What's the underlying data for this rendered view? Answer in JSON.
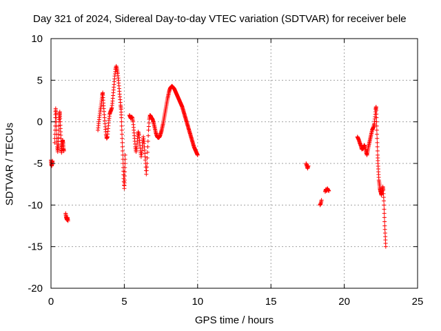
{
  "chart_data": {
    "type": "scatter",
    "title": "Day 321 of 2024, Sidereal Day-to-day VTEC variation (SDTVAR) for receiver bele",
    "xlabel": "GPS time / hours",
    "ylabel": "SDTVAR / TECUs",
    "xlim": [
      0,
      25
    ],
    "ylim": [
      -20,
      10
    ],
    "xticks": [
      0,
      5,
      10,
      15,
      20,
      25
    ],
    "yticks": [
      -20,
      -15,
      -10,
      -5,
      0,
      5,
      10
    ],
    "grid": true,
    "marker": "+",
    "color": "#ff0000",
    "segments": [
      [
        [
          0.0,
          -4.6
        ],
        [
          0.02,
          -5.0
        ],
        [
          0.05,
          -5.3
        ],
        [
          0.08,
          -5.0
        ],
        [
          0.1,
          -4.7
        ]
      ],
      [
        [
          0.25,
          -2.5
        ],
        [
          0.28,
          -1.0
        ],
        [
          0.3,
          0.5
        ],
        [
          0.32,
          1.6
        ],
        [
          0.35,
          1.0
        ],
        [
          0.38,
          -0.5
        ],
        [
          0.4,
          -2.0
        ],
        [
          0.43,
          -3.0
        ],
        [
          0.46,
          -3.6
        ],
        [
          0.5,
          -2.8
        ],
        [
          0.52,
          -1.5
        ],
        [
          0.55,
          0.0
        ],
        [
          0.58,
          0.8
        ],
        [
          0.6,
          1.2
        ],
        [
          0.62,
          0.4
        ],
        [
          0.65,
          -0.8
        ],
        [
          0.68,
          -2.0
        ],
        [
          0.7,
          -3.0
        ],
        [
          0.72,
          -3.7
        ],
        [
          0.75,
          -3.2
        ],
        [
          0.78,
          -2.4
        ],
        [
          0.8,
          -2.2
        ],
        [
          0.83,
          -2.6
        ],
        [
          0.85,
          -3.2
        ],
        [
          0.88,
          -3.5
        ]
      ],
      [
        [
          1.0,
          -11.0
        ],
        [
          1.03,
          -11.4
        ],
        [
          1.06,
          -11.6
        ],
        [
          1.1,
          -11.8
        ],
        [
          1.13,
          -11.5
        ],
        [
          1.16,
          -11.9
        ]
      ],
      [
        [
          3.2,
          -1.0
        ],
        [
          3.25,
          -0.2
        ],
        [
          3.3,
          0.5
        ],
        [
          3.35,
          1.2
        ],
        [
          3.4,
          1.8
        ],
        [
          3.45,
          2.5
        ],
        [
          3.5,
          3.2
        ],
        [
          3.53,
          3.5
        ],
        [
          3.56,
          2.6
        ],
        [
          3.6,
          1.6
        ],
        [
          3.65,
          0.5
        ],
        [
          3.7,
          -0.6
        ],
        [
          3.75,
          -1.5
        ],
        [
          3.8,
          -2.0
        ],
        [
          3.85,
          -1.8
        ],
        [
          3.9,
          -0.8
        ],
        [
          3.95,
          0.2
        ],
        [
          4.0,
          0.9
        ],
        [
          4.05,
          1.2
        ],
        [
          4.1,
          1.4
        ],
        [
          4.15,
          1.7
        ],
        [
          4.2,
          2.5
        ],
        [
          4.25,
          3.5
        ],
        [
          4.3,
          4.5
        ],
        [
          4.35,
          5.5
        ],
        [
          4.4,
          6.3
        ],
        [
          4.45,
          6.7
        ],
        [
          4.5,
          6.3
        ],
        [
          4.55,
          5.8
        ],
        [
          4.6,
          5.0
        ],
        [
          4.65,
          4.0
        ],
        [
          4.7,
          3.0
        ],
        [
          4.75,
          2.0
        ],
        [
          4.78,
          1.5
        ],
        [
          4.8,
          0.5
        ],
        [
          4.83,
          -1.0
        ],
        [
          4.86,
          -2.5
        ],
        [
          4.9,
          -4.0
        ],
        [
          4.93,
          -5.5
        ],
        [
          4.96,
          -6.8
        ],
        [
          5.0,
          -8.0
        ],
        [
          5.02,
          -7.0
        ],
        [
          5.04,
          -5.5
        ],
        [
          5.06,
          -4.0
        ]
      ],
      [
        [
          5.35,
          0.8
        ],
        [
          5.4,
          0.6
        ],
        [
          5.45,
          0.4
        ],
        [
          5.5,
          0.6
        ],
        [
          5.55,
          0.5
        ],
        [
          5.6,
          0.0
        ],
        [
          5.65,
          -1.0
        ],
        [
          5.7,
          -2.0
        ],
        [
          5.75,
          -3.0
        ],
        [
          5.8,
          -3.6
        ],
        [
          5.85,
          -3.0
        ],
        [
          5.9,
          -2.0
        ],
        [
          5.95,
          -1.2
        ],
        [
          6.0,
          -1.6
        ],
        [
          6.05,
          -2.5
        ],
        [
          6.1,
          -3.5
        ],
        [
          6.15,
          -4.2
        ],
        [
          6.2,
          -3.5
        ],
        [
          6.25,
          -2.5
        ],
        [
          6.3,
          -1.8
        ],
        [
          6.35,
          -2.6
        ],
        [
          6.4,
          -3.8
        ],
        [
          6.45,
          -5.0
        ],
        [
          6.5,
          -6.3
        ],
        [
          6.55,
          -5.0
        ],
        [
          6.6,
          -3.0
        ],
        [
          6.65,
          -1.0
        ],
        [
          6.7,
          0.3
        ],
        [
          6.75,
          0.8
        ],
        [
          6.8,
          0.7
        ],
        [
          6.85,
          0.5
        ],
        [
          6.9,
          0.4
        ],
        [
          6.95,
          0.2
        ],
        [
          7.0,
          -0.1
        ],
        [
          7.05,
          -0.5
        ],
        [
          7.1,
          -0.9
        ],
        [
          7.15,
          -1.3
        ],
        [
          7.2,
          -1.6
        ],
        [
          7.25,
          -1.8
        ],
        [
          7.3,
          -1.9
        ],
        [
          7.35,
          -1.9
        ],
        [
          7.4,
          -1.8
        ],
        [
          7.45,
          -1.6
        ],
        [
          7.5,
          -1.3
        ],
        [
          7.55,
          -1.0
        ],
        [
          7.6,
          -0.6
        ],
        [
          7.65,
          -0.2
        ],
        [
          7.7,
          0.3
        ],
        [
          7.75,
          0.8
        ],
        [
          7.8,
          1.3
        ],
        [
          7.85,
          1.8
        ],
        [
          7.9,
          2.3
        ],
        [
          7.95,
          2.8
        ],
        [
          8.0,
          3.2
        ],
        [
          8.05,
          3.6
        ],
        [
          8.1,
          3.9
        ],
        [
          8.15,
          4.1
        ],
        [
          8.2,
          4.2
        ],
        [
          8.25,
          4.3
        ],
        [
          8.3,
          4.2
        ],
        [
          8.35,
          4.1
        ],
        [
          8.4,
          4.0
        ],
        [
          8.45,
          3.8
        ],
        [
          8.5,
          3.6
        ],
        [
          8.55,
          3.4
        ],
        [
          8.6,
          3.2
        ],
        [
          8.65,
          3.0
        ],
        [
          8.7,
          2.8
        ],
        [
          8.75,
          2.6
        ],
        [
          8.8,
          2.4
        ],
        [
          8.85,
          2.2
        ],
        [
          8.9,
          2.0
        ],
        [
          8.95,
          1.8
        ],
        [
          9.0,
          1.5
        ],
        [
          9.05,
          1.2
        ],
        [
          9.1,
          0.9
        ],
        [
          9.15,
          0.6
        ],
        [
          9.2,
          0.3
        ],
        [
          9.25,
          0.0
        ],
        [
          9.3,
          -0.3
        ],
        [
          9.35,
          -0.6
        ],
        [
          9.4,
          -0.9
        ],
        [
          9.45,
          -1.2
        ],
        [
          9.5,
          -1.5
        ],
        [
          9.55,
          -1.8
        ],
        [
          9.6,
          -2.1
        ],
        [
          9.65,
          -2.4
        ],
        [
          9.7,
          -2.7
        ],
        [
          9.75,
          -3.0
        ],
        [
          9.8,
          -3.2
        ],
        [
          9.85,
          -3.4
        ],
        [
          9.9,
          -3.6
        ],
        [
          9.95,
          -3.8
        ],
        [
          10.0,
          -4.0
        ]
      ],
      [
        [
          17.4,
          -5.0
        ],
        [
          17.45,
          -5.3
        ],
        [
          17.5,
          -5.6
        ],
        [
          17.55,
          -5.3
        ]
      ],
      [
        [
          18.35,
          -10.0
        ],
        [
          18.4,
          -9.8
        ],
        [
          18.45,
          -9.4
        ]
      ],
      [
        [
          18.7,
          -8.4
        ],
        [
          18.75,
          -8.1
        ],
        [
          18.8,
          -8.3
        ],
        [
          18.85,
          -8.0
        ],
        [
          18.9,
          -8.2
        ],
        [
          18.95,
          -8.3
        ]
      ],
      [
        [
          20.9,
          -1.8
        ],
        [
          20.95,
          -2.0
        ],
        [
          21.0,
          -2.2
        ],
        [
          21.05,
          -2.5
        ],
        [
          21.1,
          -2.7
        ],
        [
          21.15,
          -3.0
        ],
        [
          21.2,
          -3.3
        ],
        [
          21.3,
          -3.2
        ],
        [
          21.35,
          -2.8
        ],
        [
          21.4,
          -2.9
        ],
        [
          21.45,
          -3.3
        ],
        [
          21.5,
          -3.7
        ],
        [
          21.55,
          -4.0
        ],
        [
          21.6,
          -3.5
        ],
        [
          21.65,
          -3.0
        ],
        [
          21.7,
          -2.6
        ],
        [
          21.75,
          -2.2
        ],
        [
          21.8,
          -1.8
        ],
        [
          21.85,
          -1.4
        ],
        [
          21.9,
          -1.0
        ],
        [
          21.95,
          -0.8
        ],
        [
          22.0,
          -0.6
        ],
        [
          22.05,
          -0.2
        ],
        [
          22.1,
          0.6
        ],
        [
          22.15,
          1.5
        ],
        [
          22.17,
          1.8
        ],
        [
          22.2,
          0.5
        ],
        [
          22.22,
          -1.0
        ],
        [
          22.25,
          -2.5
        ],
        [
          22.28,
          -4.0
        ],
        [
          22.3,
          -5.0
        ],
        [
          22.33,
          -6.0
        ],
        [
          22.36,
          -7.0
        ],
        [
          22.4,
          -7.5
        ],
        [
          22.43,
          -8.0
        ],
        [
          22.46,
          -8.3
        ],
        [
          22.5,
          -8.5
        ],
        [
          22.53,
          -8.8
        ],
        [
          22.56,
          -8.5
        ],
        [
          22.6,
          -8.2
        ],
        [
          22.63,
          -7.8
        ],
        [
          22.66,
          -8.2
        ],
        [
          22.7,
          -9.5
        ],
        [
          22.73,
          -11.0
        ],
        [
          22.76,
          -12.5
        ],
        [
          22.8,
          -13.8
        ],
        [
          22.83,
          -15.0
        ]
      ]
    ]
  }
}
